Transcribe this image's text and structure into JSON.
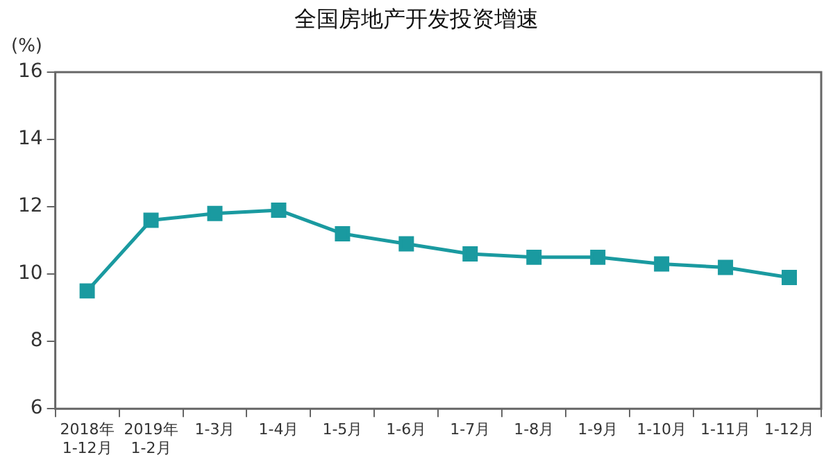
{
  "chart_data": {
    "type": "line",
    "title": "全国房地产开发投资增速",
    "ylabel": "(%)",
    "categories": [
      "2018年\n1-12月",
      "2019年\n1-2月",
      "1-3月",
      "1-4月",
      "1-5月",
      "1-6月",
      "1-7月",
      "1-8月",
      "1-9月",
      "1-10月",
      "1-11月",
      "1-12月"
    ],
    "series": [
      {
        "color": "#1a9aa0",
        "values": [
          9.5,
          11.6,
          11.8,
          11.9,
          11.2,
          10.9,
          10.6,
          10.5,
          10.5,
          10.3,
          10.2,
          9.9
        ]
      }
    ],
    "ylim": [
      6,
      16
    ],
    "yticks": [
      6,
      8,
      10,
      12,
      14,
      16
    ],
    "grid": false,
    "legend": false,
    "marker": "square",
    "line_style": "solid"
  }
}
